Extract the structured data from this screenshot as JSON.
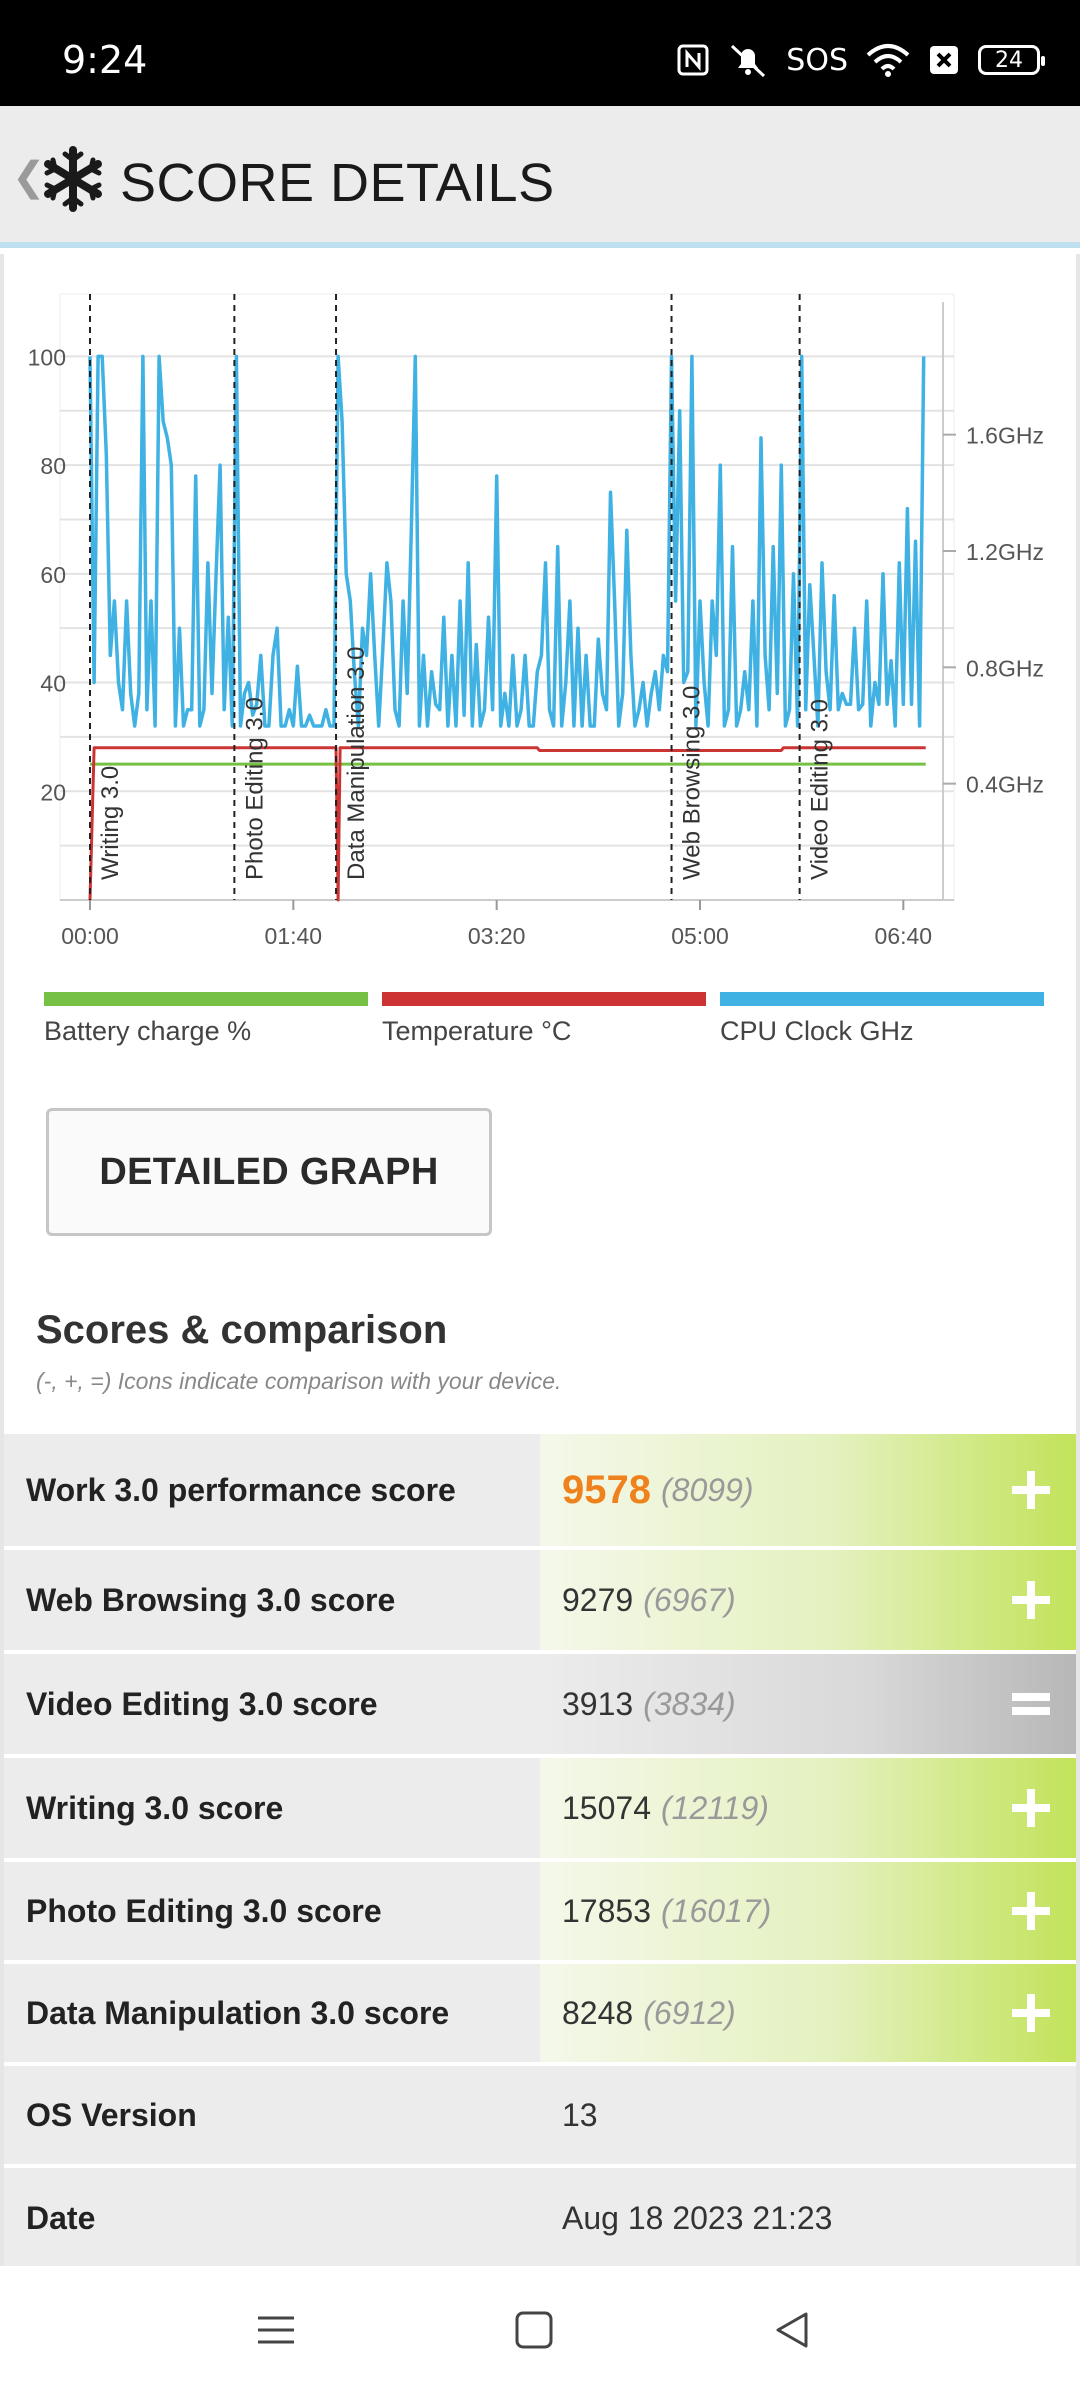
{
  "status_bar": {
    "time": "9:24",
    "sos": "SOS",
    "battery": "24"
  },
  "header": {
    "back_icon": "chevron-left-icon",
    "logo_icon": "snowflake-icon",
    "title": "SCORE DETAILS"
  },
  "chart_data": {
    "type": "line",
    "y_left": {
      "ticks": [
        "100",
        "80",
        "60",
        "40",
        "20"
      ],
      "range": [
        0,
        110
      ]
    },
    "y_right": {
      "ticks": [
        "1.6GHz",
        "1.2GHz",
        "0.8GHz",
        "0.4GHz"
      ]
    },
    "x": {
      "ticks": [
        "00:00",
        "01:40",
        "03:20",
        "05:00",
        "06:40"
      ],
      "range_seconds": [
        0,
        420
      ]
    },
    "segments": [
      {
        "label": "Writing 3.0",
        "start": 0
      },
      {
        "label": "Photo Editing 3.0",
        "start": 71
      },
      {
        "label": "Data Manipulation 3.0",
        "start": 121
      },
      {
        "label": "Web Browsing 3.0",
        "start": 286
      },
      {
        "label": "Video Editing 3.0",
        "start": 349
      }
    ],
    "series": [
      {
        "name": "Battery charge %",
        "color": "#76c043",
        "points": [
          [
            0,
            25
          ],
          [
            411,
            25
          ]
        ]
      },
      {
        "name": "Temperature °C",
        "color": "#cc3333",
        "points": [
          [
            0,
            0
          ],
          [
            2,
            28
          ],
          [
            121,
            28
          ],
          [
            122,
            0
          ],
          [
            123,
            28
          ],
          [
            220,
            28
          ],
          [
            221,
            27.5
          ],
          [
            340,
            27.5
          ],
          [
            341,
            28
          ],
          [
            411,
            28
          ]
        ]
      },
      {
        "name": "CPU Clock GHz",
        "color": "#3fb1e3",
        "points": [
          [
            0,
            100
          ],
          [
            2,
            40
          ],
          [
            4,
            100
          ],
          [
            6,
            100
          ],
          [
            8,
            82
          ],
          [
            10,
            45
          ],
          [
            12,
            55
          ],
          [
            14,
            40
          ],
          [
            16,
            35
          ],
          [
            18,
            55
          ],
          [
            20,
            38
          ],
          [
            22,
            32
          ],
          [
            24,
            38
          ],
          [
            26,
            100
          ],
          [
            28,
            35
          ],
          [
            30,
            55
          ],
          [
            32,
            32
          ],
          [
            34,
            100
          ],
          [
            36,
            88
          ],
          [
            38,
            85
          ],
          [
            40,
            80
          ],
          [
            42,
            32
          ],
          [
            44,
            50
          ],
          [
            46,
            32
          ],
          [
            48,
            35
          ],
          [
            50,
            35
          ],
          [
            52,
            78
          ],
          [
            54,
            32
          ],
          [
            56,
            35
          ],
          [
            58,
            62
          ],
          [
            60,
            38
          ],
          [
            62,
            60
          ],
          [
            64,
            80
          ],
          [
            66,
            35
          ],
          [
            68,
            52
          ],
          [
            70,
            32
          ],
          [
            72,
            100
          ],
          [
            74,
            32
          ],
          [
            76,
            38
          ],
          [
            78,
            40
          ],
          [
            80,
            34
          ],
          [
            82,
            36
          ],
          [
            84,
            45
          ],
          [
            86,
            32
          ],
          [
            88,
            32
          ],
          [
            90,
            45
          ],
          [
            92,
            50
          ],
          [
            94,
            32
          ],
          [
            96,
            32
          ],
          [
            98,
            35
          ],
          [
            100,
            32
          ],
          [
            102,
            43
          ],
          [
            104,
            32
          ],
          [
            106,
            32
          ],
          [
            108,
            34
          ],
          [
            110,
            32
          ],
          [
            112,
            32
          ],
          [
            114,
            32
          ],
          [
            116,
            35
          ],
          [
            118,
            32
          ],
          [
            120,
            32
          ],
          [
            122,
            100
          ],
          [
            124,
            88
          ],
          [
            126,
            60
          ],
          [
            128,
            55
          ],
          [
            130,
            42
          ],
          [
            132,
            32
          ],
          [
            134,
            50
          ],
          [
            136,
            45
          ],
          [
            138,
            60
          ],
          [
            140,
            45
          ],
          [
            142,
            32
          ],
          [
            144,
            46
          ],
          [
            146,
            62
          ],
          [
            148,
            55
          ],
          [
            150,
            35
          ],
          [
            152,
            32
          ],
          [
            154,
            55
          ],
          [
            156,
            38
          ],
          [
            158,
            68
          ],
          [
            160,
            100
          ],
          [
            162,
            32
          ],
          [
            164,
            45
          ],
          [
            166,
            32
          ],
          [
            168,
            42
          ],
          [
            170,
            36
          ],
          [
            172,
            35
          ],
          [
            174,
            52
          ],
          [
            176,
            32
          ],
          [
            178,
            45
          ],
          [
            180,
            32
          ],
          [
            182,
            55
          ],
          [
            184,
            34
          ],
          [
            186,
            62
          ],
          [
            188,
            32
          ],
          [
            190,
            47
          ],
          [
            192,
            32
          ],
          [
            194,
            35
          ],
          [
            196,
            52
          ],
          [
            198,
            35
          ],
          [
            200,
            78
          ],
          [
            202,
            32
          ],
          [
            204,
            38
          ],
          [
            206,
            32
          ],
          [
            208,
            45
          ],
          [
            210,
            32
          ],
          [
            212,
            35
          ],
          [
            214,
            45
          ],
          [
            216,
            32
          ],
          [
            218,
            32
          ],
          [
            220,
            42
          ],
          [
            222,
            45
          ],
          [
            224,
            62
          ],
          [
            226,
            35
          ],
          [
            228,
            32
          ],
          [
            230,
            65
          ],
          [
            232,
            32
          ],
          [
            234,
            40
          ],
          [
            236,
            55
          ],
          [
            238,
            32
          ],
          [
            240,
            50
          ],
          [
            242,
            32
          ],
          [
            244,
            45
          ],
          [
            246,
            32
          ],
          [
            248,
            32
          ],
          [
            250,
            48
          ],
          [
            252,
            38
          ],
          [
            254,
            35
          ],
          [
            256,
            75
          ],
          [
            258,
            55
          ],
          [
            260,
            32
          ],
          [
            262,
            38
          ],
          [
            264,
            68
          ],
          [
            266,
            45
          ],
          [
            268,
            32
          ],
          [
            270,
            35
          ],
          [
            272,
            40
          ],
          [
            274,
            32
          ],
          [
            276,
            38
          ],
          [
            278,
            42
          ],
          [
            280,
            35
          ],
          [
            282,
            45
          ],
          [
            284,
            42
          ],
          [
            286,
            100
          ],
          [
            288,
            55
          ],
          [
            290,
            90
          ],
          [
            292,
            40
          ],
          [
            294,
            42
          ],
          [
            296,
            100
          ],
          [
            298,
            32
          ],
          [
            300,
            55
          ],
          [
            302,
            40
          ],
          [
            304,
            32
          ],
          [
            306,
            55
          ],
          [
            308,
            45
          ],
          [
            310,
            80
          ],
          [
            312,
            32
          ],
          [
            314,
            35
          ],
          [
            316,
            65
          ],
          [
            318,
            32
          ],
          [
            320,
            35
          ],
          [
            322,
            42
          ],
          [
            324,
            35
          ],
          [
            326,
            55
          ],
          [
            328,
            32
          ],
          [
            330,
            85
          ],
          [
            332,
            45
          ],
          [
            334,
            35
          ],
          [
            336,
            65
          ],
          [
            338,
            38
          ],
          [
            340,
            80
          ],
          [
            342,
            32
          ],
          [
            344,
            35
          ],
          [
            346,
            60
          ],
          [
            348,
            32
          ],
          [
            350,
            100
          ],
          [
            352,
            35
          ],
          [
            354,
            58
          ],
          [
            356,
            45
          ],
          [
            358,
            32
          ],
          [
            360,
            62
          ],
          [
            362,
            42
          ],
          [
            364,
            35
          ],
          [
            366,
            56
          ],
          [
            368,
            35
          ],
          [
            370,
            38
          ],
          [
            372,
            36
          ],
          [
            374,
            36
          ],
          [
            376,
            50
          ],
          [
            378,
            35
          ],
          [
            380,
            36
          ],
          [
            382,
            55
          ],
          [
            384,
            32
          ],
          [
            386,
            40
          ],
          [
            388,
            36
          ],
          [
            390,
            60
          ],
          [
            392,
            36
          ],
          [
            394,
            44
          ],
          [
            396,
            32
          ],
          [
            398,
            62
          ],
          [
            400,
            36
          ],
          [
            402,
            72
          ],
          [
            404,
            36
          ],
          [
            406,
            66
          ],
          [
            408,
            32
          ],
          [
            410,
            100
          ]
        ]
      }
    ]
  },
  "legend": [
    {
      "label": "Battery charge %",
      "color": "#76c043"
    },
    {
      "label": "Temperature °C",
      "color": "#cc3333"
    },
    {
      "label": "CPU Clock GHz",
      "color": "#3fb1e3"
    }
  ],
  "detailed_graph_button": "DETAILED GRAPH",
  "scores": {
    "title": "Scores & comparison",
    "subtitle": "(-, +, =) Icons indicate comparison with your device.",
    "rows": [
      {
        "label": "Work 3.0 performance score",
        "value": "9578",
        "compare": "(8099)",
        "indicator": "plus"
      },
      {
        "label": "Web Browsing 3.0 score",
        "value": "9279",
        "compare": "(6967)",
        "indicator": "plus"
      },
      {
        "label": "Video Editing 3.0 score",
        "value": "3913",
        "compare": "(3834)",
        "indicator": "equal"
      },
      {
        "label": "Writing 3.0 score",
        "value": "15074",
        "compare": "(12119)",
        "indicator": "plus"
      },
      {
        "label": "Photo Editing 3.0 score",
        "value": "17853",
        "compare": "(16017)",
        "indicator": "plus"
      },
      {
        "label": "Data Manipulation 3.0 score",
        "value": "8248",
        "compare": "(6912)",
        "indicator": "plus"
      },
      {
        "label": "OS Version",
        "value": "13"
      },
      {
        "label": "Date",
        "value": "Aug 18 2023 21:23"
      }
    ]
  },
  "nav": {
    "menu_icon": "menu-icon",
    "home_icon": "home-icon",
    "back_icon": "back-triangle-icon"
  }
}
